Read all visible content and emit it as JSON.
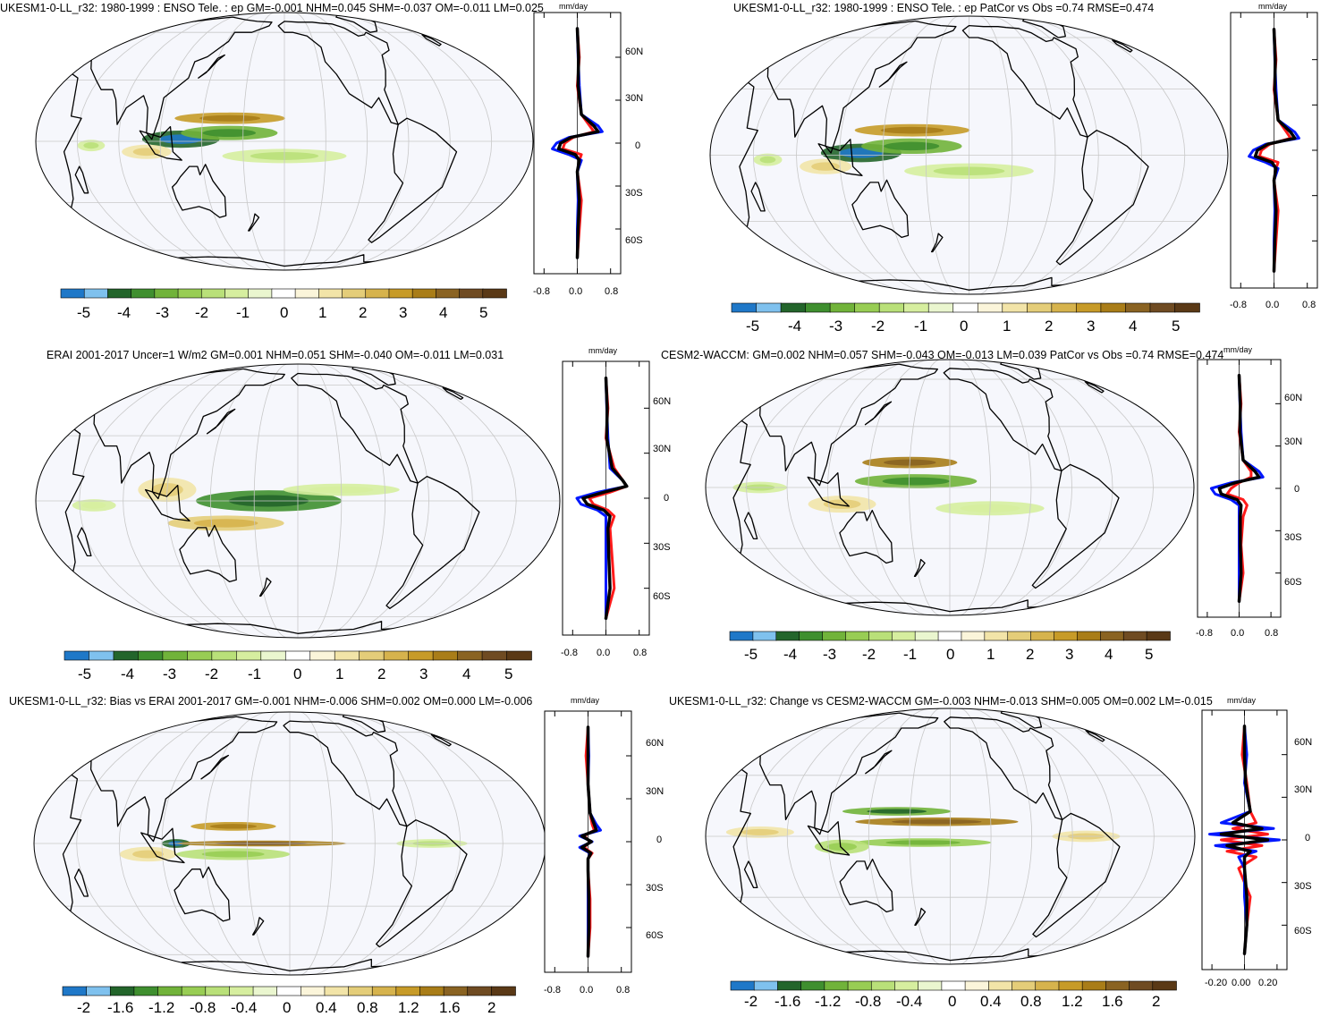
{
  "colors": {
    "map_bg": "#f6f7fc",
    "land_line": "#000000",
    "grid": "#c8c8c8",
    "zonal_model": "#0018ff",
    "zonal_obs": "#ff1a1a",
    "zonal_mean": "#000000"
  },
  "colorbar_palette": [
    "#1f78c8",
    "#7fc1ee",
    "#23652b",
    "#3f8f2f",
    "#71b33a",
    "#98cd54",
    "#b9e079",
    "#d6ee9f",
    "#eaf6cf",
    "#ffffff",
    "#fbf5da",
    "#f2e4a8",
    "#e4cd79",
    "#d6b34d",
    "#c79b28",
    "#a97d18",
    "#8a6322",
    "#6f4b22",
    "#5a3916"
  ],
  "chart_data": [
    {
      "type": "map+profile",
      "title": "UKESM1-0-LL_r32: 1980-1999 : ENSO Tele. : ep GM=-0.001 NHM=0.045 SHM=-0.037 OM=-0.011 LM=0.025",
      "unit": "mm/day",
      "lat_ticks": [
        "60N",
        "30N",
        "0",
        "30S",
        "60S"
      ],
      "profile_xticks": [
        "-0.8",
        "0.0",
        "0.8"
      ],
      "colorbar_labels": [
        "-5",
        "-4",
        "-3",
        "-2",
        "-1",
        "0",
        "1",
        "2",
        "3",
        "4",
        "5"
      ],
      "features": [
        {
          "lon": 125,
          "lat": 1,
          "rx": 28,
          "ry": 6,
          "v": -4
        },
        {
          "lon": 160,
          "lat": 4,
          "rx": 35,
          "ry": 5,
          "v": -3
        },
        {
          "lon": 160,
          "lat": 11,
          "rx": 40,
          "ry": 4,
          "v": 3
        },
        {
          "lon": 200,
          "lat": -7,
          "rx": 45,
          "ry": 5,
          "v": -1.5
        },
        {
          "lon": 100,
          "lat": -5,
          "rx": 18,
          "ry": 5,
          "v": 1.5
        },
        {
          "lon": 60,
          "lat": -2,
          "rx": 10,
          "ry": 4,
          "v": -1.5
        }
      ],
      "profile": {
        "lat": [
          80,
          60,
          40,
          20,
          12,
          8,
          4,
          0,
          -4,
          -8,
          -12,
          -20,
          -40,
          -60,
          -80
        ],
        "model": [
          0,
          0.02,
          0.05,
          0.1,
          0.5,
          0.6,
          -0.2,
          -0.5,
          -0.6,
          -0.2,
          0.1,
          0,
          0.02,
          0,
          0
        ],
        "obs": [
          0,
          0.05,
          0,
          0.1,
          0.3,
          0.4,
          -0.1,
          -0.3,
          -0.35,
          0.1,
          0.05,
          0,
          0.1,
          0.05,
          0
        ],
        "mean": [
          0,
          0.03,
          0.02,
          0.1,
          0.4,
          0.5,
          -0.15,
          -0.4,
          -0.45,
          -0.05,
          0.05,
          0,
          0.05,
          0.02,
          0
        ]
      }
    },
    {
      "type": "map+profile",
      "title": "UKESM1-0-LL_r32: 1980-1999 : ENSO Tele. : ep PatCor vs Obs =0.74 RMSE=0.474",
      "unit": "mm/day",
      "lat_ticks": [],
      "profile_xticks": [
        "-0.8",
        "0.0",
        "0.8"
      ],
      "colorbar_labels": [
        "-5",
        "-4",
        "-3",
        "-2",
        "-1",
        "0",
        "1",
        "2",
        "3",
        "4",
        "5"
      ],
      "features": [
        {
          "lon": 125,
          "lat": 1,
          "rx": 28,
          "ry": 6,
          "v": -4
        },
        {
          "lon": 160,
          "lat": 4,
          "rx": 35,
          "ry": 5,
          "v": -3
        },
        {
          "lon": 160,
          "lat": 11,
          "rx": 40,
          "ry": 4,
          "v": 3
        },
        {
          "lon": 200,
          "lat": -7,
          "rx": 45,
          "ry": 5,
          "v": -1.5
        },
        {
          "lon": 100,
          "lat": -5,
          "rx": 18,
          "ry": 5,
          "v": 1.5
        },
        {
          "lon": 60,
          "lat": -2,
          "rx": 10,
          "ry": 4,
          "v": -1.5
        }
      ],
      "profile": {
        "lat": [
          80,
          60,
          40,
          20,
          12,
          8,
          4,
          0,
          -4,
          -8,
          -12,
          -20,
          -40,
          -60,
          -80
        ],
        "model": [
          0,
          0.02,
          0.05,
          0.1,
          0.5,
          0.6,
          -0.2,
          -0.5,
          -0.6,
          -0.2,
          0.1,
          0,
          0.02,
          0,
          0
        ],
        "obs": [
          0,
          0.05,
          0,
          0.1,
          0.3,
          0.4,
          -0.1,
          -0.3,
          -0.35,
          0.1,
          0.05,
          0,
          0.1,
          0.05,
          0
        ],
        "mean": [
          0,
          0.03,
          0.02,
          0.1,
          0.4,
          0.5,
          -0.15,
          -0.4,
          -0.45,
          -0.05,
          0.05,
          0,
          0.05,
          0.02,
          0
        ]
      }
    },
    {
      "type": "map+profile",
      "title": "ERAI 2001-2017 Uncer=1 W/m2 GM=0.001 NHM=0.051 SHM=-0.040 OM=-0.011 LM=0.031",
      "unit": "mm/day",
      "lat_ticks": [
        "60N",
        "30N",
        "0",
        "30S",
        "60S"
      ],
      "profile_xticks": [
        "-0.8",
        "0.0",
        "0.8"
      ],
      "colorbar_labels": [
        "-5",
        "-4",
        "-3",
        "-2",
        "-1",
        "0",
        "1",
        "2",
        "3",
        "4",
        "5"
      ],
      "features": [
        {
          "lon": 180,
          "lat": 0,
          "rx": 50,
          "ry": 7,
          "v": -3.5
        },
        {
          "lon": 150,
          "lat": -10,
          "rx": 40,
          "ry": 5,
          "v": 2
        },
        {
          "lon": 110,
          "lat": 5,
          "rx": 20,
          "ry": 8,
          "v": 1.5
        },
        {
          "lon": 230,
          "lat": 5,
          "rx": 40,
          "ry": 4,
          "v": -1
        },
        {
          "lon": 60,
          "lat": -2,
          "rx": 15,
          "ry": 4,
          "v": -1
        }
      ],
      "profile": {
        "lat": [
          80,
          60,
          40,
          20,
          12,
          8,
          4,
          0,
          -4,
          -8,
          -12,
          -20,
          -40,
          -60,
          -80
        ],
        "model": [
          0,
          0.02,
          0.05,
          0.1,
          0.4,
          0.5,
          -0.2,
          -0.7,
          -0.6,
          -0.2,
          0,
          0,
          0,
          0,
          0
        ],
        "obs": [
          0,
          0.05,
          0,
          0.2,
          0.4,
          0.5,
          0.1,
          -0.4,
          -0.3,
          0.05,
          0.2,
          0.1,
          0.15,
          0.2,
          0
        ],
        "mean": [
          0,
          0.03,
          0.02,
          0.15,
          0.4,
          0.5,
          -0.05,
          -0.55,
          -0.45,
          -0.05,
          0.1,
          0.05,
          0.07,
          0.1,
          0
        ]
      }
    },
    {
      "type": "map+profile",
      "title": "CESM2-WACCM: GM=0.002 NHM=0.057 SHM=-0.043 OM=-0.013 LM=0.039 PatCor vs Obs =0.74 RMSE=0.474",
      "unit": "mm/day",
      "lat_ticks": [
        "60N",
        "30N",
        "0",
        "30S",
        "60S"
      ],
      "profile_xticks": [
        "-0.8",
        "0.0",
        "0.8"
      ],
      "colorbar_labels": [
        "-5",
        "-4",
        "-3",
        "-2",
        "-1",
        "0",
        "1",
        "2",
        "3",
        "4",
        "5"
      ],
      "features": [
        {
          "lon": 175,
          "lat": 3,
          "rx": 45,
          "ry": 5,
          "v": -3
        },
        {
          "lon": 170,
          "lat": 12,
          "rx": 35,
          "ry": 4,
          "v": 3.5
        },
        {
          "lon": 120,
          "lat": -8,
          "rx": 25,
          "ry": 6,
          "v": 1.5
        },
        {
          "lon": 60,
          "lat": 0,
          "rx": 20,
          "ry": 4,
          "v": -1.5
        },
        {
          "lon": 230,
          "lat": -10,
          "rx": 40,
          "ry": 5,
          "v": -1
        }
      ],
      "profile": {
        "lat": [
          80,
          60,
          40,
          20,
          12,
          8,
          4,
          0,
          -4,
          -8,
          -12,
          -20,
          -40,
          -60,
          -80
        ],
        "model": [
          0,
          0.02,
          0.05,
          0.1,
          0.5,
          0.6,
          -0.2,
          -0.7,
          -0.6,
          -0.2,
          0,
          0,
          0,
          0,
          0
        ],
        "obs": [
          0,
          0.05,
          0,
          0.1,
          0.3,
          0.3,
          0,
          -0.2,
          -0.3,
          0.1,
          0.2,
          0.1,
          0.05,
          0.1,
          0
        ],
        "mean": [
          0,
          0.03,
          0.02,
          0.1,
          0.4,
          0.5,
          -0.1,
          -0.5,
          -0.45,
          -0.05,
          0.05,
          0.03,
          0.03,
          0.05,
          0
        ]
      }
    },
    {
      "type": "map+profile",
      "title": "UKESM1-0-LL_r32: Bias vs ERAI 2001-2017 GM=-0.001 NHM=-0.006 SHM=0.002 OM=0.000 LM=-0.006",
      "unit": "mm/day",
      "lat_ticks": [
        "60N",
        "30N",
        "0",
        "30S",
        "60S"
      ],
      "profile_xticks": [
        "-0.8",
        "0.0",
        "0.8"
      ],
      "colorbar_labels": [
        "-2",
        "-1.6",
        "-1.2",
        "-0.8",
        "-0.4",
        "0",
        "0.4",
        "0.8",
        "1.2",
        "1.6",
        "2"
      ],
      "features": [
        {
          "lon": 120,
          "lat": 0,
          "rx": 10,
          "ry": 3,
          "v": -1.8
        },
        {
          "lon": 180,
          "lat": 0,
          "rx": 60,
          "ry": 2,
          "v": 1.5
        },
        {
          "lon": 160,
          "lat": 8,
          "rx": 30,
          "ry": 3,
          "v": 1.2
        },
        {
          "lon": 160,
          "lat": -5,
          "rx": 40,
          "ry": 4,
          "v": -0.8
        },
        {
          "lon": 100,
          "lat": -5,
          "rx": 20,
          "ry": 5,
          "v": 0.6
        },
        {
          "lon": 300,
          "lat": 0,
          "rx": 25,
          "ry": 3,
          "v": -0.6
        }
      ],
      "profile": {
        "lat": [
          80,
          60,
          40,
          20,
          12,
          8,
          4,
          0,
          -4,
          -8,
          -12,
          -20,
          -40,
          -60,
          -80
        ],
        "model": [
          0,
          0.02,
          0,
          0.05,
          0.2,
          0.3,
          -0.2,
          0.1,
          -0.2,
          0.05,
          0,
          0,
          0,
          0,
          0
        ],
        "obs": [
          0,
          -0.05,
          0,
          0.05,
          0.1,
          0.15,
          -0.1,
          0.05,
          -0.1,
          0.1,
          0,
          0,
          0.05,
          0.05,
          0
        ],
        "mean": [
          0,
          0,
          0,
          0.05,
          0.15,
          0.2,
          -0.15,
          0.08,
          -0.15,
          0.07,
          0,
          0,
          0.02,
          0.02,
          0
        ]
      }
    },
    {
      "type": "map+profile",
      "title": "UKESM1-0-LL_r32: Change vs CESM2-WACCM GM=-0.003 NHM=-0.013 SHM=0.005 OM=0.002 LM=-0.015",
      "unit": "mm/day",
      "lat_ticks": [
        "60N",
        "30N",
        "0",
        "30S",
        "60S"
      ],
      "profile_xticks": [
        "-0.20",
        "0.00",
        "0.20"
      ],
      "colorbar_labels": [
        "-2",
        "-1.6",
        "-1.2",
        "-0.8",
        "-0.4",
        "0",
        "0.4",
        "0.8",
        "1.2",
        "1.6",
        "2"
      ],
      "features": [
        {
          "lon": 160,
          "lat": 12,
          "rx": 40,
          "ry": 3,
          "v": -1.3
        },
        {
          "lon": 190,
          "lat": 7,
          "rx": 60,
          "ry": 3,
          "v": 1.4
        },
        {
          "lon": 180,
          "lat": -3,
          "rx": 50,
          "ry": 3,
          "v": -1
        },
        {
          "lon": 60,
          "lat": 2,
          "rx": 25,
          "ry": 4,
          "v": 0.6
        },
        {
          "lon": 120,
          "lat": -5,
          "rx": 20,
          "ry": 5,
          "v": -0.7
        },
        {
          "lon": 300,
          "lat": 0,
          "rx": 25,
          "ry": 4,
          "v": 0.6
        }
      ],
      "profile": {
        "lat": [
          80,
          60,
          40,
          20,
          12,
          8,
          4,
          0,
          -4,
          -8,
          -12,
          -20,
          -40,
          -60,
          -80
        ],
        "model": [
          0,
          0.02,
          0,
          0.05,
          -0.2,
          0.25,
          -0.3,
          0.3,
          -0.25,
          0.1,
          -0.05,
          0,
          0,
          0.02,
          0
        ],
        "obs": [
          0,
          -0.02,
          0.02,
          0.05,
          0.1,
          -0.1,
          0.2,
          -0.2,
          0.15,
          -0.15,
          0.1,
          -0.05,
          0.05,
          0.02,
          0
        ],
        "mean": [
          0,
          0,
          0.01,
          0.05,
          -0.1,
          0.15,
          -0.2,
          0.2,
          -0.15,
          0.05,
          0,
          0,
          0.02,
          0.02,
          0
        ]
      }
    }
  ]
}
